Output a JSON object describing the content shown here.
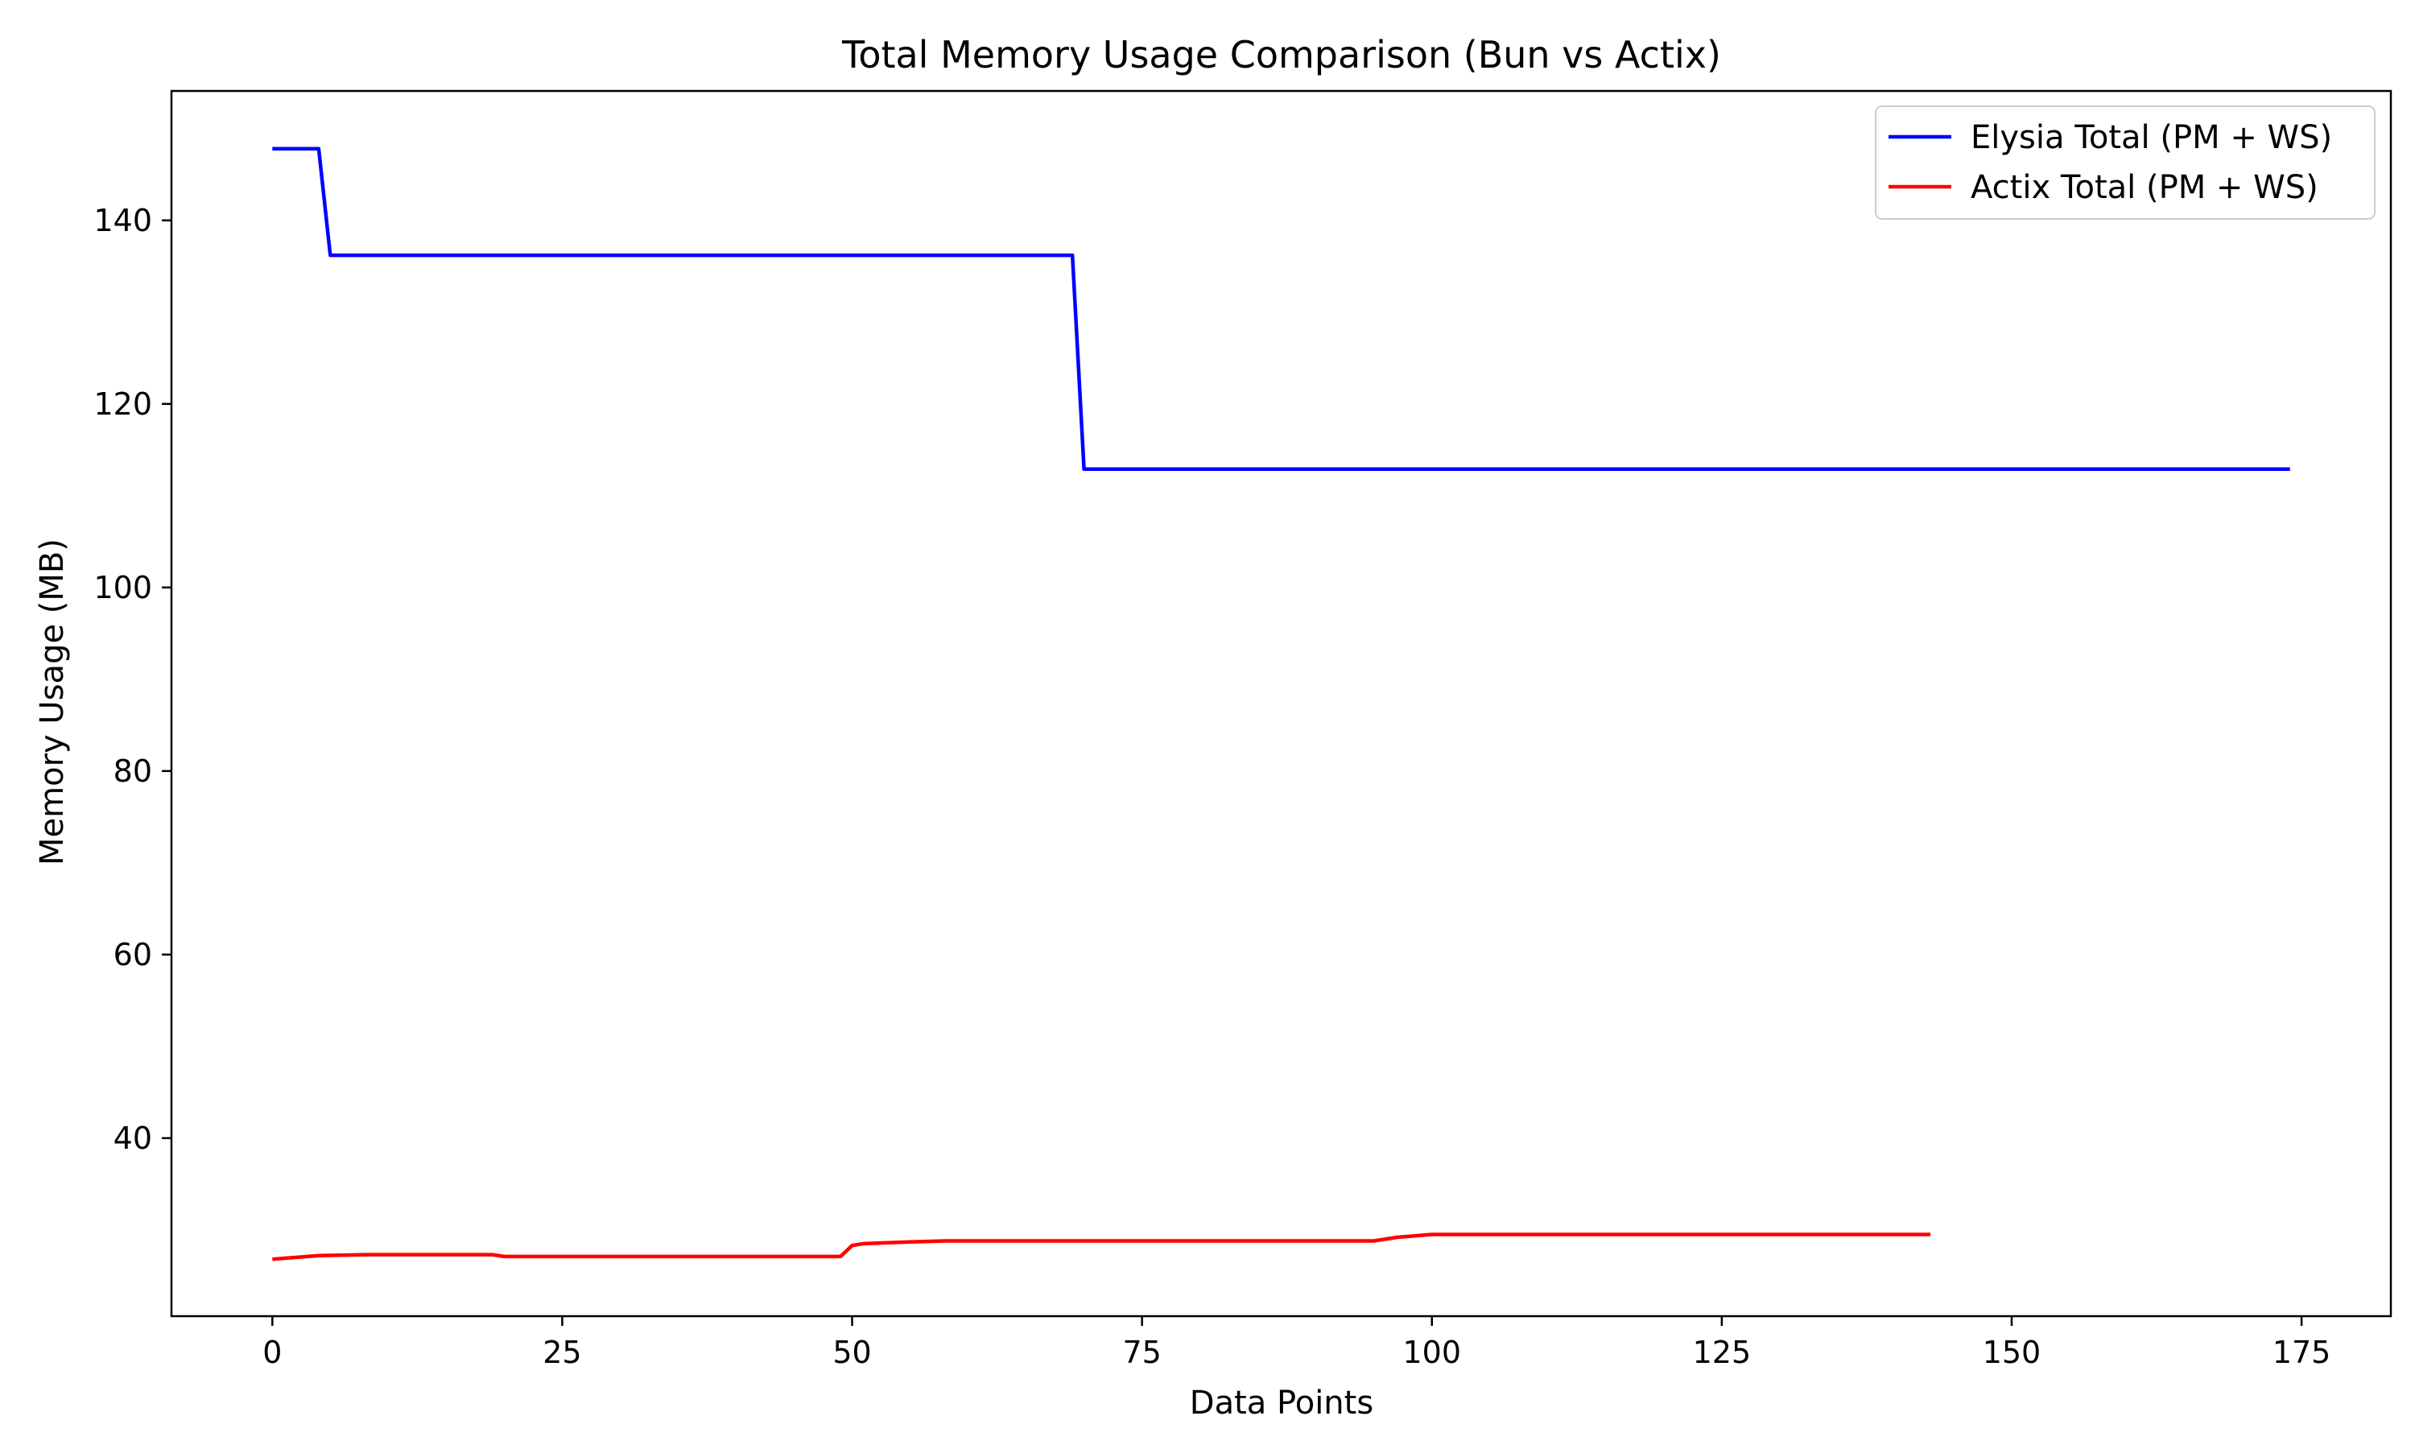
{
  "chart_data": {
    "type": "line",
    "title": "Total Memory Usage Comparison (Bun vs Actix)",
    "xlabel": "Data Points",
    "ylabel": "Memory Usage (MB)",
    "xlim": [
      -8.7,
      182.7
    ],
    "ylim": [
      20.6,
      154.1
    ],
    "x_ticks": [
      0,
      25,
      50,
      75,
      100,
      125,
      150,
      175
    ],
    "y_ticks": [
      40,
      60,
      80,
      100,
      120,
      140
    ],
    "grid": false,
    "legend_position": "top-right",
    "series": [
      {
        "name": "Elysia Total (PM + WS)",
        "color": "#0000ff",
        "points": [
          [
            0,
            147.8
          ],
          [
            4,
            147.8
          ],
          [
            5,
            136.2
          ],
          [
            69,
            136.2
          ],
          [
            70,
            112.9
          ],
          [
            174,
            112.9
          ]
        ]
      },
      {
        "name": "Actix Total (PM + WS)",
        "color": "#ff0000",
        "points": [
          [
            0,
            26.8
          ],
          [
            2,
            27.0
          ],
          [
            4,
            27.2
          ],
          [
            8,
            27.3
          ],
          [
            19,
            27.3
          ],
          [
            20,
            27.1
          ],
          [
            49,
            27.1
          ],
          [
            50,
            28.3
          ],
          [
            51,
            28.5
          ],
          [
            55,
            28.7
          ],
          [
            58,
            28.8
          ],
          [
            95,
            28.8
          ],
          [
            97,
            29.2
          ],
          [
            100,
            29.5
          ],
          [
            143,
            29.5
          ]
        ]
      }
    ]
  }
}
